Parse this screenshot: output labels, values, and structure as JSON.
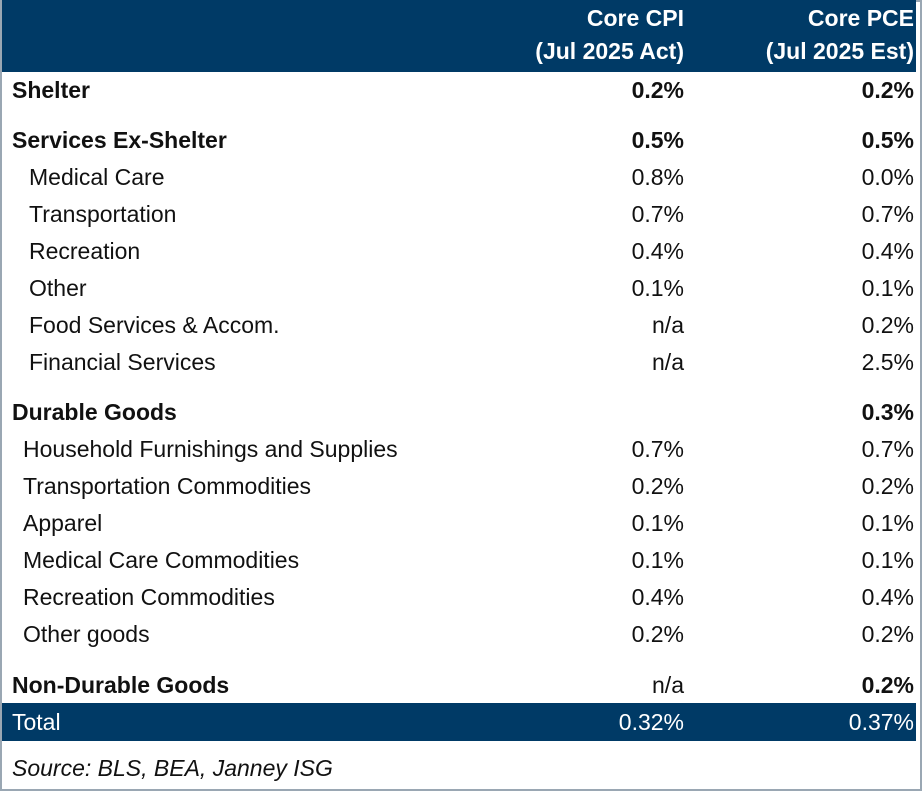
{
  "header": {
    "col1_line1": "Core CPI",
    "col1_line2": "(Jul 2025 Act)",
    "col2_line1": "Core PCE",
    "col2_line2": "(Jul 2025 Est)"
  },
  "rows": [
    {
      "label": "Shelter",
      "cpi": "0.2%",
      "pce": "0.2%"
    },
    {
      "label": "Services Ex-Shelter",
      "cpi": "0.5%",
      "pce": "0.5%"
    },
    {
      "label": "Medical Care",
      "cpi": "0.8%",
      "pce": "0.0%"
    },
    {
      "label": "Transportation",
      "cpi": "0.7%",
      "pce": "0.7%"
    },
    {
      "label": "Recreation",
      "cpi": "0.4%",
      "pce": "0.4%"
    },
    {
      "label": "Other",
      "cpi": "0.1%",
      "pce": "0.1%"
    },
    {
      "label": "Food Services & Accom.",
      "cpi": "n/a",
      "pce": "0.2%"
    },
    {
      "label": "Financial Services",
      "cpi": "n/a",
      "pce": "2.5%"
    },
    {
      "label": "Durable Goods",
      "cpi": "",
      "pce": "0.3%"
    },
    {
      "label": "Household Furnishings and Supplies",
      "cpi": "0.7%",
      "pce": "0.7%"
    },
    {
      "label": "Transportation Commodities",
      "cpi": "0.2%",
      "pce": "0.2%"
    },
    {
      "label": "Apparel",
      "cpi": "0.1%",
      "pce": "0.1%"
    },
    {
      "label": "Medical Care Commodities",
      "cpi": "0.1%",
      "pce": "0.1%"
    },
    {
      "label": "Recreation Commodities",
      "cpi": "0.4%",
      "pce": "0.4%"
    },
    {
      "label": "Other goods",
      "cpi": "0.2%",
      "pce": "0.2%"
    },
    {
      "label": "Non-Durable Goods",
      "cpi": "n/a",
      "pce": "0.2%"
    }
  ],
  "total": {
    "label": "Total",
    "cpi": "0.32%",
    "pce": "0.37%"
  },
  "source": "Source: BLS, BEA, Janney ISG",
  "colors": {
    "header_bg": "#003a66",
    "border": "#9aa7b3"
  }
}
